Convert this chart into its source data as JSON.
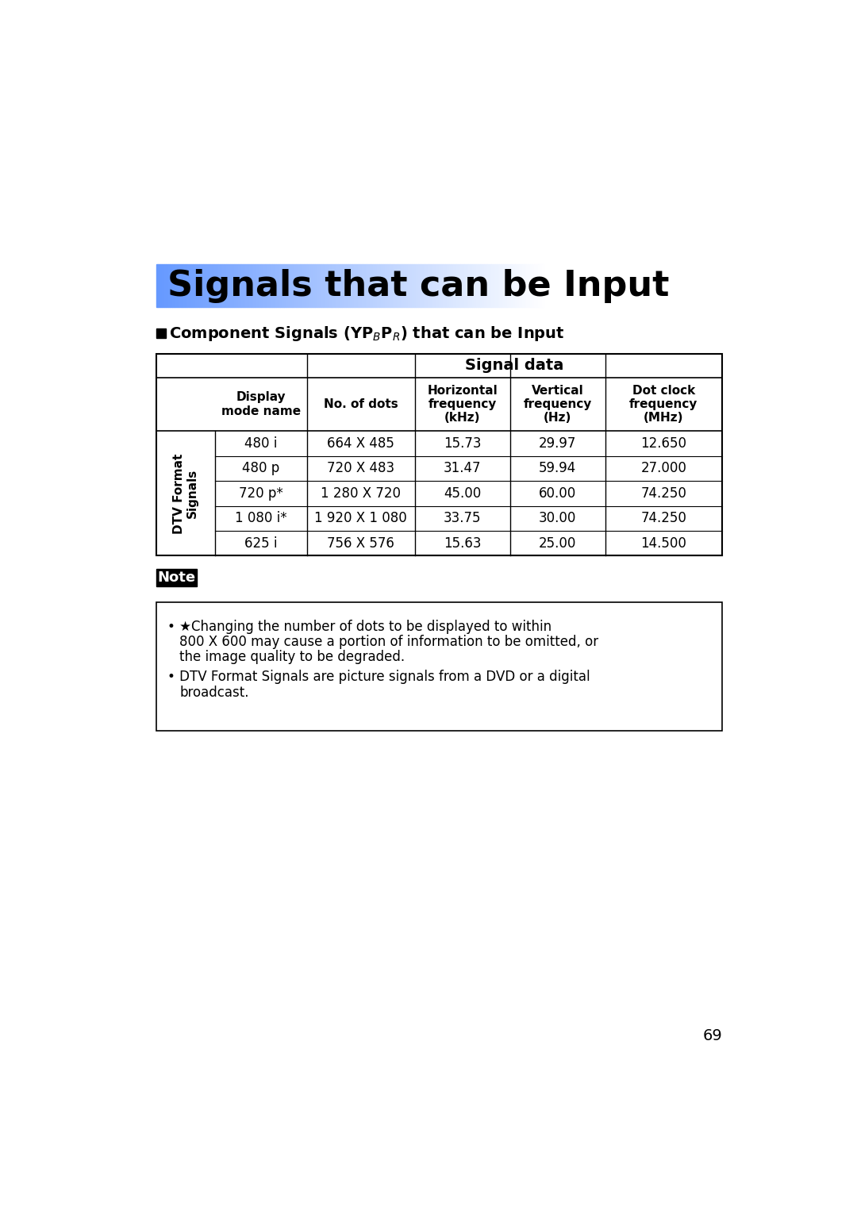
{
  "title": "Signals that can be Input",
  "title_bg_color_left": "#6699FF",
  "title_bg_color_right": "#FFFFFF",
  "section_header": "Component Signals (YPBPR) that can be Input",
  "table_header_signal_data": "Signal data",
  "table_col1_header": "Display\nmode name",
  "table_col2_header": "No. of dots",
  "table_col3_header": "Horizontal\nfrequency\n(kHz)",
  "table_col4_header": "Vertical\nfrequency\n(Hz)",
  "table_col5_header": "Dot clock\nfrequency\n(MHz)",
  "row_label": "DTV Format\nSignals",
  "rows": [
    {
      "mode": "480 i",
      "dots": "664 X 485",
      "h_freq": "15.73",
      "v_freq": "29.97",
      "dot_clk": "12.650"
    },
    {
      "mode": "480 p",
      "dots": "720 X 483",
      "h_freq": "31.47",
      "v_freq": "59.94",
      "dot_clk": "27.000"
    },
    {
      "mode": "720 p*",
      "dots": "1 280 X 720",
      "h_freq": "45.00",
      "v_freq": "60.00",
      "dot_clk": "74.250"
    },
    {
      "mode": "1 080 i*",
      "dots": "1 920 X 1 080",
      "h_freq": "33.75",
      "v_freq": "30.00",
      "dot_clk": "74.250"
    },
    {
      "mode": "625 i",
      "dots": "756 X 576",
      "h_freq": "15.63",
      "v_freq": "25.00",
      "dot_clk": "14.500"
    }
  ],
  "note_title": "Note",
  "note_bullet1_line1": "• ★Changing the number of dots to be displayed to within",
  "note_bullet1_line2": "800 X 600 may cause a portion of information to be omitted, or",
  "note_bullet1_line3": "the image quality to be degraded.",
  "note_bullet2_line1": "• DTV Format Signals are picture signals from a DVD or a digital",
  "note_bullet2_line2": "broadcast.",
  "page_number": "69",
  "bg_color": "#FFFFFF",
  "text_color": "#000000"
}
